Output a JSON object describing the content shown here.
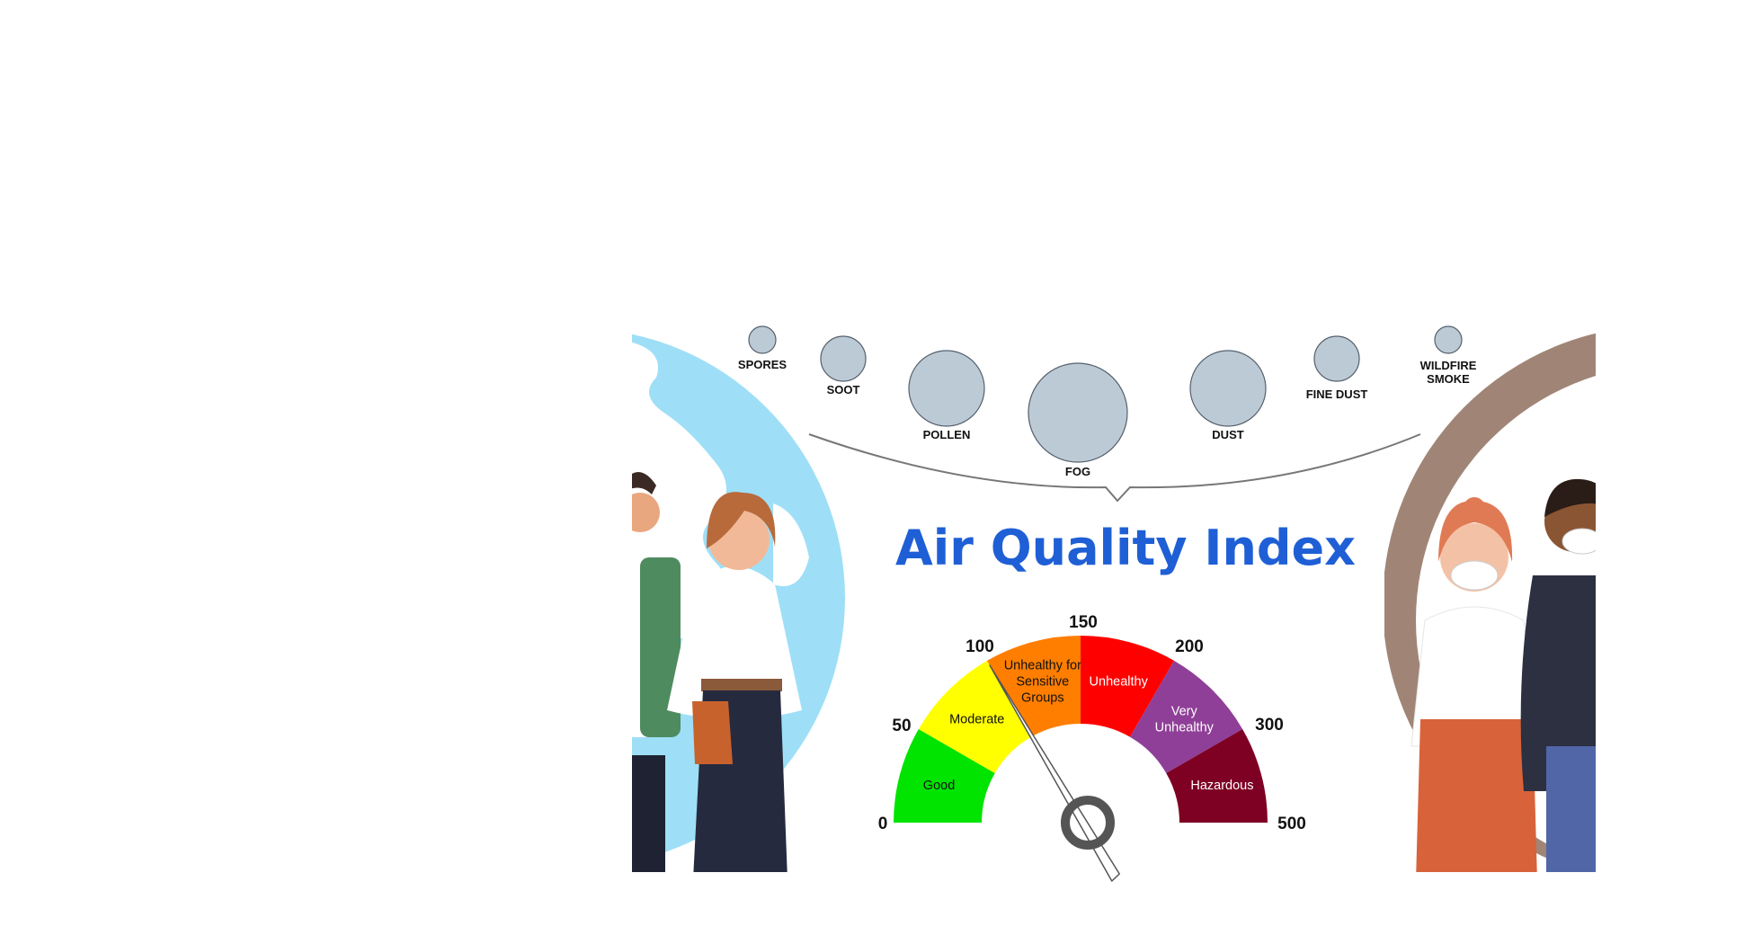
{
  "title": "Air Quality Index",
  "colors": {
    "title": "#1f5fd6",
    "particle_fill": "#bccad6",
    "particle_stroke": "#55606c",
    "bracket": "#777777"
  },
  "particles": [
    {
      "label_lines": [
        "SPORES"
      ]
    },
    {
      "label_lines": [
        "SOOT"
      ]
    },
    {
      "label_lines": [
        "POLLEN"
      ]
    },
    {
      "label_lines": [
        "FOG"
      ]
    },
    {
      "label_lines": [
        "DUST"
      ]
    },
    {
      "label_lines": [
        "FINE DUST"
      ]
    },
    {
      "label_lines": [
        "WILDFIRE",
        "SMOKE"
      ]
    }
  ],
  "chart_data": {
    "type": "gauge",
    "title": "Air Quality Index",
    "ticks": [
      "0",
      "50",
      "100",
      "150",
      "200",
      "300",
      "500"
    ],
    "bands": [
      {
        "label_lines": [
          "Good"
        ],
        "range": [
          "0",
          "50"
        ],
        "color": "#00e400",
        "text_color": "#111111"
      },
      {
        "label_lines": [
          "Moderate"
        ],
        "range": [
          "50",
          "100"
        ],
        "color": "#ffff00",
        "text_color": "#111111"
      },
      {
        "label_lines": [
          "Unhealthy for",
          "Sensitive",
          "Groups"
        ],
        "range": [
          "100",
          "150"
        ],
        "color": "#ff7e00",
        "text_color": "#111111"
      },
      {
        "label_lines": [
          "Unhealthy"
        ],
        "range": [
          "150",
          "200"
        ],
        "color": "#ff0000",
        "text_color": "#ffffff"
      },
      {
        "label_lines": [
          "Very",
          "Unhealthy"
        ],
        "range": [
          "200",
          "300"
        ],
        "color": "#8f3f97",
        "text_color": "#ffffff"
      },
      {
        "label_lines": [
          "Hazardous"
        ],
        "range": [
          "300",
          "500"
        ],
        "color": "#7e0023",
        "text_color": "#ffffff"
      }
    ],
    "needle_value": 100
  },
  "illustrations": {
    "left": "people-with-globe-illustration",
    "right": "people-with-masks-illustration"
  }
}
